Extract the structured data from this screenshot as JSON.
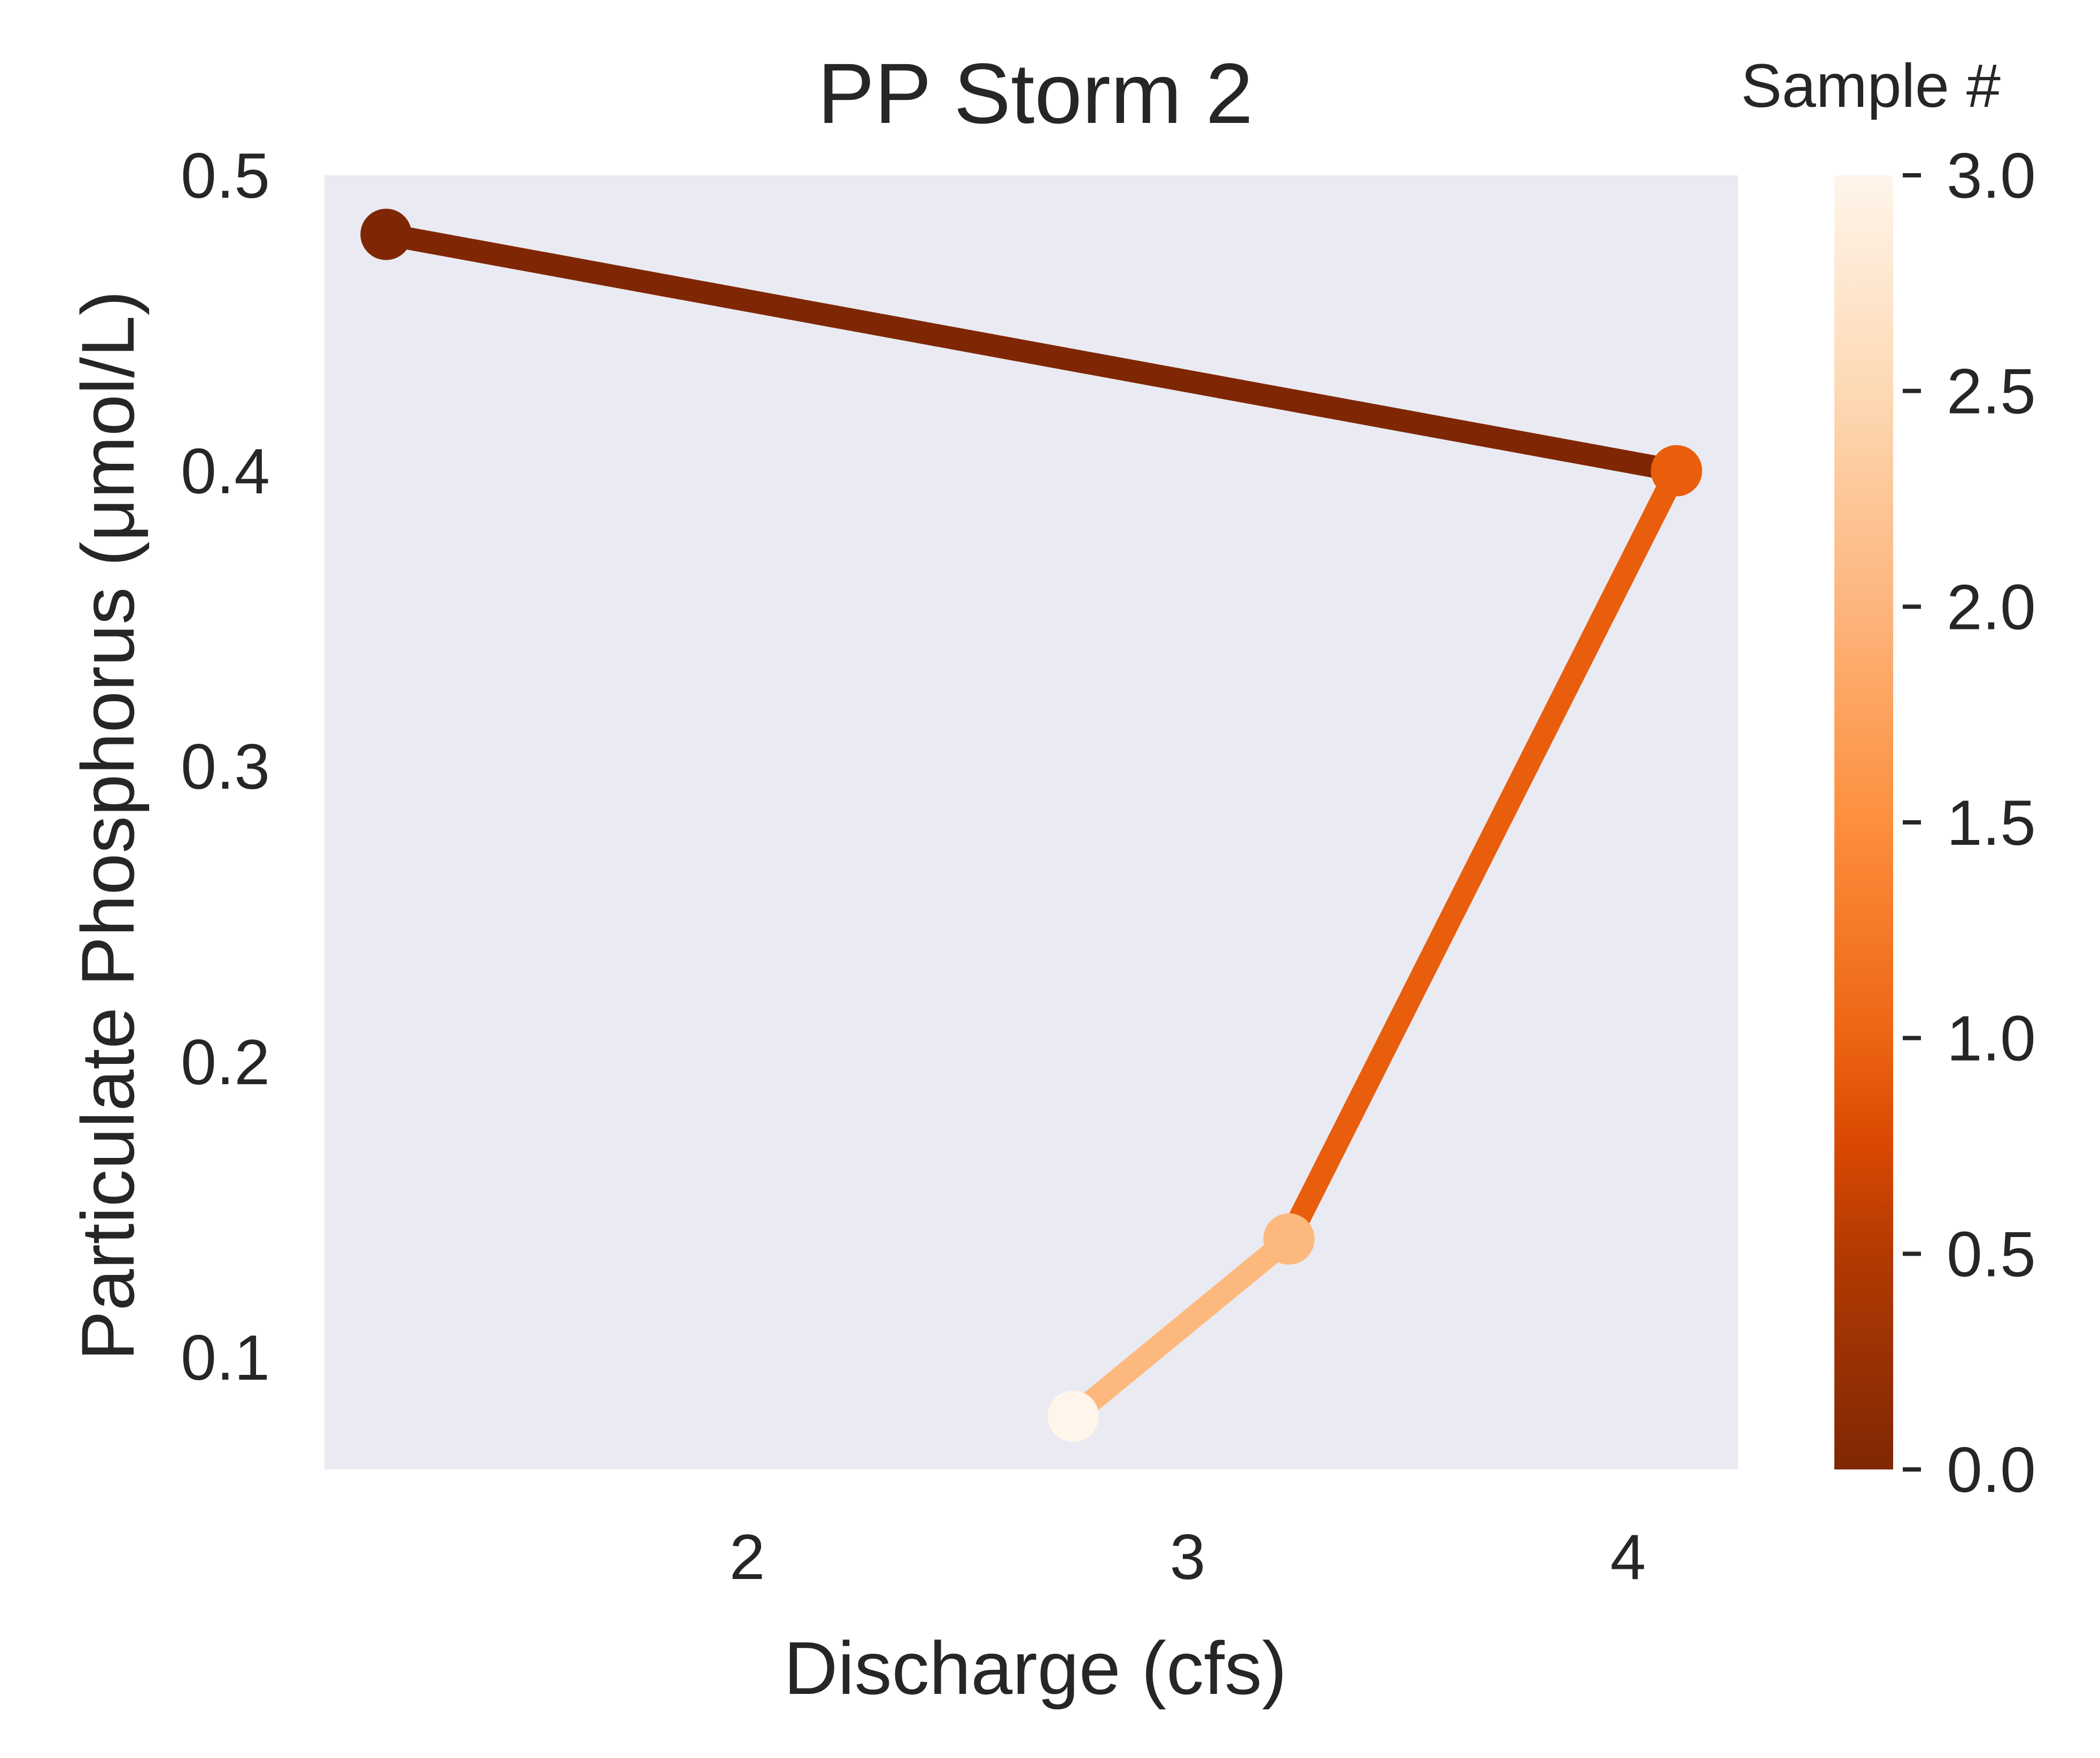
{
  "chart_data": {
    "type": "line",
    "title": "PP Storm 2",
    "xlabel": "Discharge (cfs)",
    "ylabel": "Particulate Phosphorus (μmol/L)",
    "x": [
      1.18,
      4.11,
      3.23,
      2.74
    ],
    "y": [
      0.48,
      0.4,
      0.14,
      0.08
    ],
    "sample_numbers": [
      0,
      1,
      2,
      3
    ],
    "xlim": [
      1.04,
      4.25
    ],
    "ylim": [
      0.062,
      0.5
    ],
    "xticks": [
      2,
      3,
      4
    ],
    "xtick_labels": [
      "2",
      "3",
      "4"
    ],
    "yticks": [
      0.1,
      0.2,
      0.3,
      0.4,
      0.5
    ],
    "ytick_labels": [
      "0.1",
      "0.2",
      "0.3",
      "0.4",
      "0.5"
    ],
    "grid": false,
    "colorbar": {
      "label": "Sample #",
      "range": [
        0.0,
        3.0
      ],
      "ticks": [
        0.0,
        0.5,
        1.0,
        1.5,
        2.0,
        2.5,
        3.0
      ],
      "tick_labels": [
        "0.0",
        "0.5",
        "1.0",
        "1.5",
        "2.0",
        "2.5",
        "3.0"
      ],
      "colormap": "Oranges_r",
      "gradient_stops": [
        {
          "value": 0.0,
          "color": "#7f2704"
        },
        {
          "value": 0.5,
          "color": "#b33a02"
        },
        {
          "value": 0.75,
          "color": "#d94801"
        },
        {
          "value": 1.0,
          "color": "#ed6414"
        },
        {
          "value": 1.5,
          "color": "#fd8f3d"
        },
        {
          "value": 2.0,
          "color": "#fdb57d"
        },
        {
          "value": 2.5,
          "color": "#fdd9b4"
        },
        {
          "value": 3.0,
          "color": "#fff5eb"
        }
      ]
    },
    "segment_colors": [
      "#7f2704",
      "#e95e0d",
      "#fdb97d"
    ],
    "point_colors": [
      "#7f2704",
      "#e95e0d",
      "#fdb97d",
      "#fff5eb"
    ],
    "plot_background": "#eaeaf2"
  }
}
